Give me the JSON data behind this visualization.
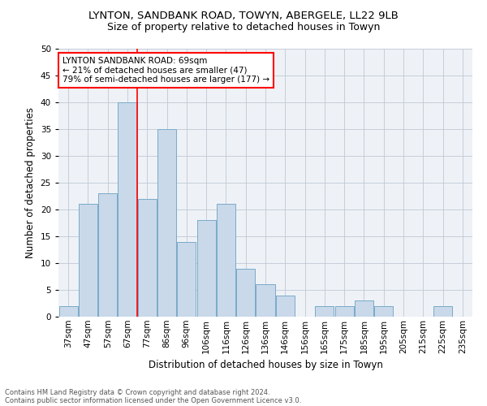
{
  "title1": "LYNTON, SANDBANK ROAD, TOWYN, ABERGELE, LL22 9LB",
  "title2": "Size of property relative to detached houses in Towyn",
  "xlabel": "Distribution of detached houses by size in Towyn",
  "ylabel": "Number of detached properties",
  "categories": [
    "37sqm",
    "47sqm",
    "57sqm",
    "67sqm",
    "77sqm",
    "86sqm",
    "96sqm",
    "106sqm",
    "116sqm",
    "126sqm",
    "136sqm",
    "146sqm",
    "156sqm",
    "165sqm",
    "175sqm",
    "185sqm",
    "195sqm",
    "205sqm",
    "215sqm",
    "225sqm",
    "235sqm"
  ],
  "values": [
    2,
    21,
    23,
    40,
    22,
    35,
    14,
    18,
    21,
    9,
    6,
    4,
    0,
    2,
    2,
    3,
    2,
    0,
    0,
    2,
    0
  ],
  "bar_color": "#c9d9ea",
  "bar_edge_color": "#7aaac8",
  "red_line_index": 3,
  "ylim": [
    0,
    50
  ],
  "yticks": [
    0,
    5,
    10,
    15,
    20,
    25,
    30,
    35,
    40,
    45,
    50
  ],
  "annotation_title": "LYNTON SANDBANK ROAD: 69sqm",
  "annotation_line1": "← 21% of detached houses are smaller (47)",
  "annotation_line2": "79% of semi-detached houses are larger (177) →",
  "footer1": "Contains HM Land Registry data © Crown copyright and database right 2024.",
  "footer2": "Contains public sector information licensed under the Open Government Licence v3.0.",
  "bg_color": "#ffffff",
  "ax_bg_color": "#eef2f7",
  "grid_color": "#c0c8d4",
  "title1_fontsize": 9.5,
  "title2_fontsize": 9,
  "ylabel_fontsize": 8.5,
  "xlabel_fontsize": 8.5,
  "tick_fontsize": 7.5,
  "annotation_fontsize": 7.5,
  "footer_fontsize": 6
}
